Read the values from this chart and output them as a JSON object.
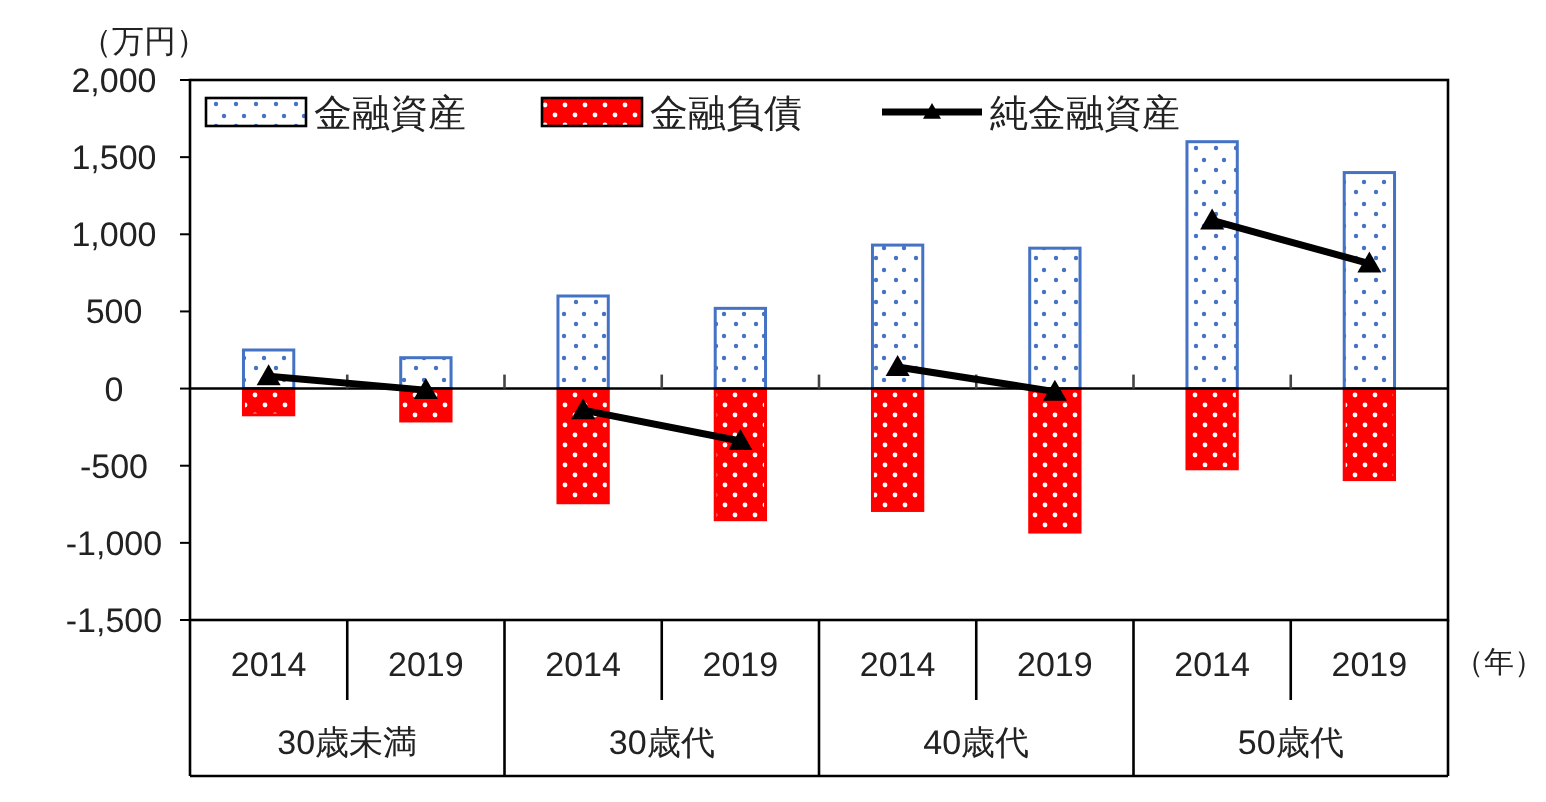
{
  "chart_data": {
    "type": "bar",
    "stacked": true,
    "ylabel": "（万円）",
    "xlabel": "（年）",
    "categories": [
      "2014",
      "2019",
      "2014",
      "2019",
      "2014",
      "2019",
      "2014",
      "2019"
    ],
    "annotations": [
      "30歳未満",
      "30歳代",
      "40歳代",
      "50歳代"
    ],
    "ylim": [
      -1500,
      2000
    ],
    "yticks": [
      {
        "value": -1500,
        "label": "-1,500"
      },
      {
        "value": -1000,
        "label": "-1,000"
      },
      -500,
      0,
      500,
      {
        "value": 1000,
        "label": "1,000"
      },
      {
        "value": 1500,
        "label": "1,500"
      },
      {
        "value": 2000,
        "label": "2,000"
      }
    ],
    "legend": "top left",
    "marker": "triangle",
    "series": [
      {
        "name": "金融資産",
        "color": "#4472c4",
        "values": [
          250,
          200,
          600,
          520,
          930,
          910,
          1600,
          1400
        ]
      },
      {
        "name": "金融負債",
        "color": "#ff0000",
        "values": [
          -170,
          -210,
          -740,
          -850,
          -790,
          -930,
          -520,
          -590
        ]
      },
      {
        "name": "純金融資産",
        "type": "line",
        "color": "#000000",
        "values": [
          80,
          -10,
          -140,
          -340,
          140,
          -20,
          1090,
          810
        ]
      }
    ]
  }
}
